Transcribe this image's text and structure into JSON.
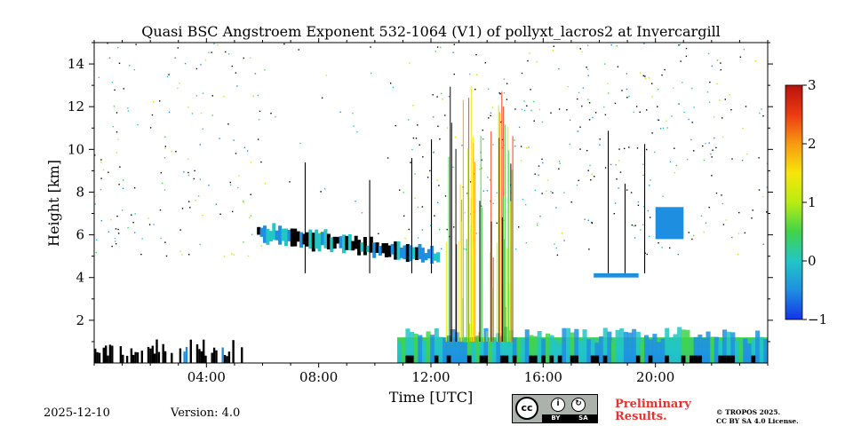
{
  "chart_data": {
    "type": "heatmap",
    "title": "Quasi BSC Angstroem Exponent 532-1064 (V1) of pollyxt_lacros2 at Invercargill",
    "xlabel": "Time [UTC]",
    "ylabel": "Height [km]",
    "xlim_hours": [
      0,
      24
    ],
    "ylim_km": [
      0,
      15
    ],
    "x_tick_values": [
      4,
      8,
      12,
      16,
      20
    ],
    "x_tick_labels": [
      "04:00",
      "08:00",
      "12:00",
      "16:00",
      "20:00"
    ],
    "y_tick_values": [
      2,
      4,
      6,
      8,
      10,
      12,
      14
    ],
    "y_tick_labels": [
      "2",
      "4",
      "6",
      "8",
      "10",
      "12",
      "14"
    ],
    "colorbar": {
      "min": -1,
      "max": 3,
      "tick_values": [
        -1,
        0,
        1,
        2,
        3
      ],
      "tick_labels": [
        "−1",
        "0",
        "1",
        "2",
        "3"
      ],
      "colors": [
        "#1434e8",
        "#1e8fe0",
        "#22c6c6",
        "#41d34a",
        "#b9ec12",
        "#f7e50b",
        "#f79a10",
        "#ec3b12",
        "#b8120c"
      ]
    },
    "features": [
      {
        "name": "near-surface layer (morning)",
        "t_start": 0.0,
        "t_end": 5.3,
        "h_bottom": 0.0,
        "h_top": 1.1,
        "value": -1.6,
        "color": "#000000"
      },
      {
        "name": "sloping elevated layer",
        "t_start": 5.8,
        "t_end": 12.3,
        "h_bottom": 4.6,
        "h_top": 6.4,
        "value": -0.3
      },
      {
        "name": "boundary layer (afternoon)",
        "t_start": 10.8,
        "t_end": 24.0,
        "h_bottom": 0.0,
        "h_top": 1.7,
        "value": -0.1
      },
      {
        "name": "isolated cloud patch",
        "t_start": 20.0,
        "t_end": 21.0,
        "h_bottom": 5.8,
        "h_top": 7.3,
        "value": -0.3
      },
      {
        "name": "thin horizontal layer",
        "t_start": 17.8,
        "t_end": 19.4,
        "h_bottom": 4.0,
        "h_top": 4.2,
        "value": -0.3
      },
      {
        "name": "high-value vertical streaks",
        "t_start": 12.5,
        "t_end": 14.9,
        "h_bottom": 1.0,
        "h_top": 13.0,
        "value": 2.0
      }
    ]
  },
  "footer": {
    "date": "2025-12-10",
    "version": "Version: 4.0",
    "license_badge": {
      "cc": "cc",
      "by": "BY",
      "sa": "SA"
    },
    "preliminary_line1": "Preliminary",
    "preliminary_line2": "Results.",
    "copyright_line1": "© TROPOS 2025.",
    "copyright_line2": "CC BY SA 4.0 License."
  }
}
